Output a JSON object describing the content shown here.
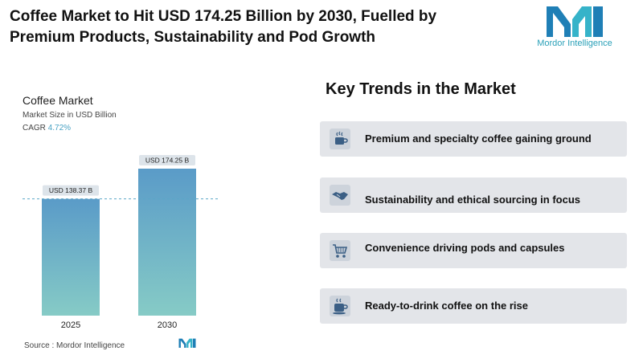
{
  "header": {
    "headline_line1": "Coffee Market to Hit USD 174.25 Billion by 2030, Fuelled by",
    "headline_line2": "Premium Products, Sustainability and Pod Growth",
    "brand_name": "Mordor Intelligence",
    "brand_color": "#2aa0b8"
  },
  "chart_data": {
    "type": "bar",
    "title": "Coffee Market",
    "subtitle": "Market Size in USD Billion",
    "cagr_label": "CAGR",
    "cagr_value": "4.72%",
    "categories": [
      "2025",
      "2030"
    ],
    "values": [
      138.37,
      174.25
    ],
    "data_labels": [
      "USD 138.37 B",
      "USD 174.25 B"
    ],
    "ylim": [
      0,
      174.25
    ],
    "grid": false,
    "reference_line": "dashed at 2025 value",
    "bar_colors": [
      "#5a9bc8",
      "#86cbc6"
    ]
  },
  "source": {
    "label": "Source :",
    "name": "Mordor Intelligence"
  },
  "trends": {
    "title": "Key Trends in the Market",
    "items": [
      {
        "label": "Premium and specialty coffee gaining ground",
        "icon": "coffee-cup-icon"
      },
      {
        "label": "Sustainability and ethical sourcing in focus",
        "icon": "handshake-icon"
      },
      {
        "label": "Convenience driving pods and capsules",
        "icon": "shopping-cart-icon"
      },
      {
        "label": "Ready-to-drink coffee on the rise",
        "icon": "coffee-mug-icon"
      }
    ]
  }
}
